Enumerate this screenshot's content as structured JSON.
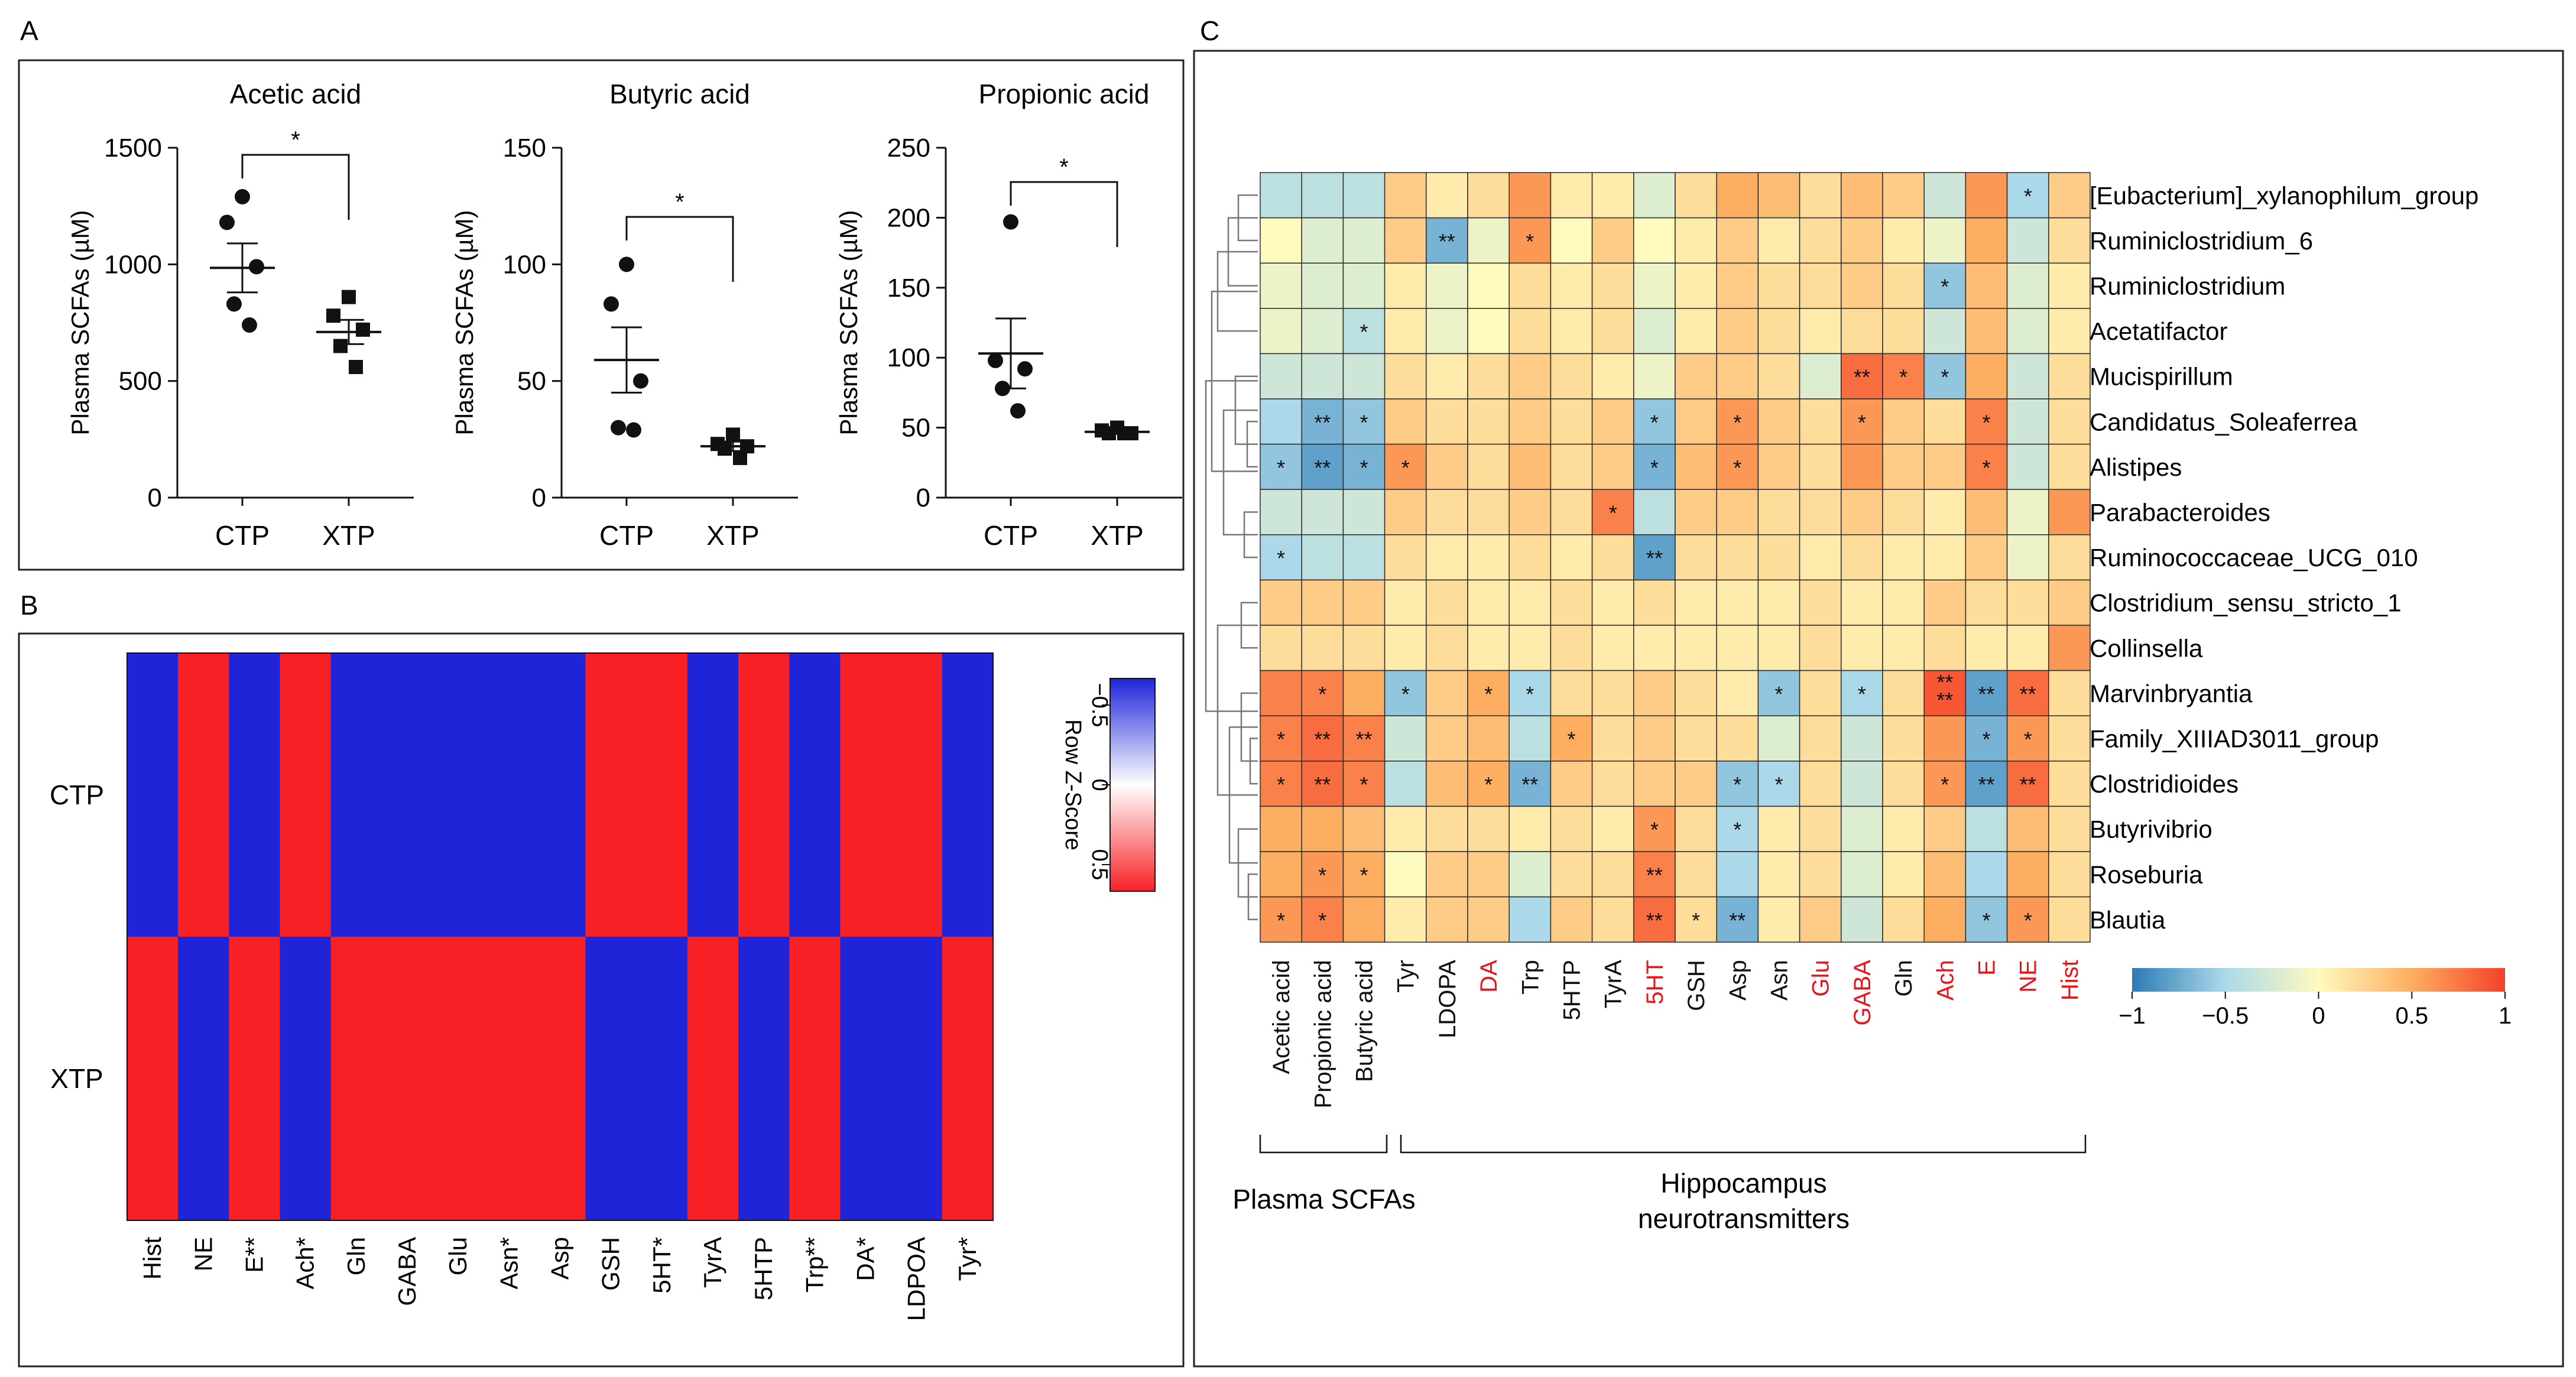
{
  "panel_labels": {
    "a": "A",
    "b": "B",
    "c": "C"
  },
  "chart_data": [
    {
      "type": "scatter",
      "panel": "A",
      "title": "Acetic acid",
      "ylabel": "Plasma SCFAs (µM)",
      "ylim": [
        0,
        1500
      ],
      "yticks": [
        0,
        500,
        1000,
        1500
      ],
      "categories": [
        "CTP",
        "XTP"
      ],
      "points": [
        [
          1290,
          1180,
          990,
          830,
          740
        ],
        [
          860,
          780,
          720,
          650,
          560
        ]
      ],
      "mean": [
        985,
        710
      ],
      "sem": [
        105,
        52
      ],
      "significance": "*"
    },
    {
      "type": "scatter",
      "panel": "A",
      "title": "Butyric acid",
      "ylabel": "Plasma SCFAs (µM)",
      "ylim": [
        0,
        150
      ],
      "yticks": [
        0,
        50,
        100,
        150
      ],
      "categories": [
        "CTP",
        "XTP"
      ],
      "points": [
        [
          100,
          83,
          50,
          30,
          29
        ],
        [
          27,
          23,
          22,
          21,
          17
        ]
      ],
      "mean": [
        59,
        22
      ],
      "sem": [
        14,
        2
      ],
      "significance": "*"
    },
    {
      "type": "scatter",
      "panel": "A",
      "title": "Propionic acid",
      "ylabel": "Plasma SCFAs (µM)",
      "ylim": [
        0,
        250
      ],
      "yticks": [
        0,
        50,
        100,
        150,
        200,
        250
      ],
      "categories": [
        "CTP",
        "XTP"
      ],
      "points": [
        [
          197,
          98,
          92,
          78,
          62
        ],
        [
          50,
          48,
          46,
          46,
          46
        ]
      ],
      "mean": [
        103,
        47
      ],
      "sem": [
        25,
        1.5
      ],
      "significance": "*"
    },
    {
      "type": "heatmap",
      "panel": "B",
      "rows": [
        "CTP",
        "XTP"
      ],
      "columns": [
        "Hist",
        "NE",
        "E**",
        "Ach*",
        "Gln",
        "GABA",
        "Glu",
        "Asn*",
        "Asp",
        "GSH",
        "5HT*",
        "TyrA",
        "5HTP",
        "Trp**",
        "DA*",
        "LDPOA",
        "Tyr*"
      ],
      "values": [
        [
          -0.7,
          0.7,
          -0.7,
          0.7,
          -0.7,
          -0.7,
          -0.7,
          -0.7,
          -0.7,
          0.7,
          0.7,
          -0.7,
          0.7,
          -0.7,
          0.7,
          0.7,
          -0.7
        ],
        [
          0.7,
          -0.7,
          0.7,
          -0.7,
          0.7,
          0.7,
          0.7,
          0.7,
          0.7,
          -0.7,
          -0.7,
          0.7,
          -0.7,
          0.7,
          -0.7,
          -0.7,
          0.7
        ]
      ],
      "legend_title": "Row Z-Score",
      "legend_ticks": [
        "−0.5",
        "0",
        "0.5"
      ],
      "legend_colors": {
        "low": "#1f24d9",
        "mid": "#ffffff",
        "high": "#f72125"
      }
    },
    {
      "type": "heatmap",
      "panel": "C",
      "rows": [
        "[Eubacterium]_xylanophilum_group",
        "Ruminiclostridium_6",
        "Ruminiclostridium",
        "Acetatifactor",
        "Mucispirillum",
        "Candidatus_Soleaferrea",
        "Alistipes",
        "Parabacteroides",
        "Ruminococcaceae_UCG_010",
        "Clostridium_sensu_stricto_1",
        "Collinsella",
        "Marvinbryantia",
        "Family_XIIIAD3011_group",
        "Clostridioides",
        "Butyrivibrio",
        "Roseburia",
        "Blautia"
      ],
      "columns": [
        "Acetic acid",
        "Propionic acid",
        "Butyric acid",
        "Tyr",
        "LDOPA",
        "DA",
        "Trp",
        "5HTP",
        "TyrA",
        "5HT",
        "GSH",
        "Asp",
        "Asn",
        "Glu",
        "GABA",
        "Gln",
        "Ach",
        "E",
        "NE",
        "Hist"
      ],
      "red_columns": [
        "DA",
        "5HT",
        "Glu",
        "GABA",
        "Ach",
        "E",
        "NE",
        "Hist"
      ],
      "values": [
        [
          -0.4,
          -0.4,
          -0.4,
          0.3,
          0.1,
          0.2,
          0.6,
          0.1,
          0.1,
          -0.2,
          0.2,
          0.5,
          0.4,
          0.2,
          0.4,
          0.3,
          -0.3,
          0.6,
          -0.5,
          0.3
        ],
        [
          0.0,
          -0.2,
          -0.2,
          0.3,
          -0.7,
          -0.1,
          0.6,
          0.0,
          0.3,
          0.0,
          0.1,
          0.3,
          0.1,
          0.2,
          0.3,
          0.1,
          -0.1,
          0.5,
          -0.3,
          0.2
        ],
        [
          -0.1,
          -0.2,
          -0.2,
          0.1,
          -0.1,
          0.0,
          0.2,
          0.1,
          0.2,
          -0.1,
          0.1,
          0.3,
          0.2,
          0.2,
          0.3,
          0.2,
          -0.6,
          0.4,
          -0.2,
          0.1
        ],
        [
          -0.1,
          -0.2,
          -0.4,
          0.1,
          -0.1,
          0.0,
          0.2,
          0.1,
          0.2,
          -0.2,
          0.1,
          0.3,
          0.2,
          0.1,
          0.2,
          0.2,
          -0.3,
          0.4,
          -0.2,
          0.1
        ],
        [
          -0.3,
          -0.3,
          -0.3,
          0.2,
          0.1,
          0.2,
          0.3,
          0.2,
          0.1,
          -0.1,
          0.3,
          0.3,
          0.2,
          -0.2,
          0.8,
          0.7,
          -0.6,
          0.5,
          -0.3,
          0.2
        ],
        [
          -0.5,
          -0.7,
          -0.6,
          0.3,
          0.2,
          0.2,
          0.3,
          0.2,
          0.3,
          -0.6,
          0.3,
          0.6,
          0.3,
          0.2,
          0.6,
          0.3,
          0.2,
          0.7,
          -0.3,
          0.2
        ],
        [
          -0.6,
          -0.8,
          -0.7,
          0.6,
          0.3,
          0.2,
          0.4,
          0.2,
          0.3,
          -0.7,
          0.4,
          0.6,
          0.3,
          0.2,
          0.6,
          0.3,
          0.3,
          0.7,
          -0.3,
          0.2
        ],
        [
          -0.3,
          -0.3,
          -0.3,
          0.3,
          0.2,
          0.2,
          0.3,
          0.2,
          0.7,
          -0.4,
          0.3,
          0.3,
          0.2,
          0.2,
          0.3,
          0.2,
          0.1,
          0.4,
          -0.1,
          0.6
        ],
        [
          -0.5,
          -0.4,
          -0.4,
          0.2,
          0.1,
          0.1,
          0.2,
          0.1,
          0.2,
          -0.8,
          0.2,
          0.2,
          0.2,
          0.1,
          0.2,
          0.1,
          0.1,
          0.3,
          -0.1,
          0.2
        ],
        [
          0.3,
          0.3,
          0.3,
          0.1,
          0.2,
          0.1,
          0.1,
          0.2,
          0.1,
          0.2,
          0.1,
          0.1,
          0.1,
          0.2,
          0.1,
          0.1,
          0.3,
          0.2,
          0.2,
          0.3
        ],
        [
          0.2,
          0.2,
          0.2,
          0.1,
          0.2,
          0.1,
          0.1,
          0.2,
          0.1,
          0.1,
          0.1,
          0.1,
          0.1,
          0.2,
          0.1,
          0.1,
          0.2,
          0.1,
          0.1,
          0.6
        ],
        [
          0.7,
          0.7,
          0.5,
          -0.6,
          0.3,
          0.5,
          -0.5,
          0.2,
          0.2,
          0.3,
          0.2,
          0.1,
          -0.6,
          0.2,
          -0.5,
          0.2,
          0.9,
          -0.8,
          0.8,
          0.2
        ],
        [
          0.7,
          0.8,
          0.7,
          -0.3,
          0.3,
          0.4,
          -0.4,
          0.5,
          0.2,
          0.3,
          0.2,
          0.2,
          -0.2,
          0.2,
          -0.3,
          0.2,
          0.6,
          -0.7,
          0.6,
          0.2
        ],
        [
          0.7,
          0.8,
          0.7,
          -0.4,
          0.4,
          0.5,
          -0.7,
          0.3,
          0.2,
          0.3,
          0.3,
          -0.6,
          -0.5,
          0.2,
          -0.3,
          0.2,
          0.6,
          -0.8,
          0.8,
          0.2
        ],
        [
          0.5,
          0.5,
          0.4,
          0.1,
          0.2,
          0.2,
          0.1,
          0.2,
          0.1,
          0.6,
          0.2,
          -0.5,
          0.1,
          0.2,
          -0.2,
          0.1,
          0.3,
          -0.4,
          0.4,
          0.2
        ],
        [
          0.5,
          0.6,
          0.5,
          0.0,
          0.3,
          0.3,
          -0.2,
          0.2,
          0.2,
          0.7,
          0.2,
          -0.5,
          0.1,
          0.2,
          -0.2,
          0.1,
          0.4,
          -0.5,
          0.5,
          0.2
        ],
        [
          0.6,
          0.7,
          0.5,
          0.1,
          0.3,
          0.3,
          -0.5,
          0.3,
          0.2,
          0.8,
          0.2,
          -0.7,
          0.1,
          0.3,
          -0.3,
          0.2,
          0.5,
          -0.6,
          0.6,
          0.2
        ]
      ],
      "significance": [
        {
          "row": 0,
          "col": 18,
          "label": "*"
        },
        {
          "row": 1,
          "col": 4,
          "label": "**"
        },
        {
          "row": 1,
          "col": 6,
          "label": "*"
        },
        {
          "row": 2,
          "col": 16,
          "label": "*"
        },
        {
          "row": 3,
          "col": 2,
          "label": "*"
        },
        {
          "row": 4,
          "col": 14,
          "label": "**"
        },
        {
          "row": 4,
          "col": 15,
          "label": "*"
        },
        {
          "row": 4,
          "col": 16,
          "label": "*"
        },
        {
          "row": 5,
          "col": 1,
          "label": "**"
        },
        {
          "row": 5,
          "col": 2,
          "label": "*"
        },
        {
          "row": 5,
          "col": 9,
          "label": "*"
        },
        {
          "row": 5,
          "col": 11,
          "label": "*"
        },
        {
          "row": 5,
          "col": 14,
          "label": "*"
        },
        {
          "row": 5,
          "col": 17,
          "label": "*"
        },
        {
          "row": 6,
          "col": 0,
          "label": "*"
        },
        {
          "row": 6,
          "col": 1,
          "label": "**"
        },
        {
          "row": 6,
          "col": 2,
          "label": "*"
        },
        {
          "row": 6,
          "col": 3,
          "label": "*"
        },
        {
          "row": 6,
          "col": 9,
          "label": "*"
        },
        {
          "row": 6,
          "col": 11,
          "label": "*"
        },
        {
          "row": 6,
          "col": 17,
          "label": "*"
        },
        {
          "row": 7,
          "col": 8,
          "label": "*"
        },
        {
          "row": 8,
          "col": 0,
          "label": "*"
        },
        {
          "row": 8,
          "col": 9,
          "label": "**"
        },
        {
          "row": 11,
          "col": 1,
          "label": "*"
        },
        {
          "row": 11,
          "col": 3,
          "label": "*"
        },
        {
          "row": 11,
          "col": 5,
          "label": "*"
        },
        {
          "row": 11,
          "col": 6,
          "label": "*"
        },
        {
          "row": 11,
          "col": 12,
          "label": "*"
        },
        {
          "row": 11,
          "col": 14,
          "label": "*"
        },
        {
          "row": 11,
          "col": 16,
          "label": "**\n**"
        },
        {
          "row": 11,
          "col": 17,
          "label": "**"
        },
        {
          "row": 11,
          "col": 18,
          "label": "**"
        },
        {
          "row": 12,
          "col": 0,
          "label": "*"
        },
        {
          "row": 12,
          "col": 1,
          "label": "**"
        },
        {
          "row": 12,
          "col": 2,
          "label": "**"
        },
        {
          "row": 12,
          "col": 7,
          "label": "*"
        },
        {
          "row": 12,
          "col": 17,
          "label": "*"
        },
        {
          "row": 12,
          "col": 18,
          "label": "*"
        },
        {
          "row": 13,
          "col": 0,
          "label": "*"
        },
        {
          "row": 13,
          "col": 1,
          "label": "**"
        },
        {
          "row": 13,
          "col": 2,
          "label": "*"
        },
        {
          "row": 13,
          "col": 5,
          "label": "*"
        },
        {
          "row": 13,
          "col": 6,
          "label": "**"
        },
        {
          "row": 13,
          "col": 11,
          "label": "*"
        },
        {
          "row": 13,
          "col": 12,
          "label": "*"
        },
        {
          "row": 13,
          "col": 16,
          "label": "*"
        },
        {
          "row": 13,
          "col": 17,
          "label": "**"
        },
        {
          "row": 13,
          "col": 18,
          "label": "**"
        },
        {
          "row": 14,
          "col": 9,
          "label": "*"
        },
        {
          "row": 14,
          "col": 11,
          "label": "*"
        },
        {
          "row": 15,
          "col": 1,
          "label": "*"
        },
        {
          "row": 15,
          "col": 2,
          "label": "*"
        },
        {
          "row": 15,
          "col": 9,
          "label": "**"
        },
        {
          "row": 16,
          "col": 0,
          "label": "*"
        },
        {
          "row": 16,
          "col": 1,
          "label": "*"
        },
        {
          "row": 16,
          "col": 9,
          "label": "**"
        },
        {
          "row": 16,
          "col": 10,
          "label": "*"
        },
        {
          "row": 16,
          "col": 11,
          "label": "**"
        },
        {
          "row": 16,
          "col": 17,
          "label": "*"
        },
        {
          "row": 16,
          "col": 18,
          "label": "*"
        }
      ],
      "legend_ticks": [
        "−1",
        "−0.5",
        "0",
        "0.5",
        "1"
      ],
      "legend_range": [
        -1,
        1
      ],
      "group_labels": {
        "plasma": "Plasma SCFAs",
        "hippo_line1": "Hippocampus",
        "hippo_line2": "neurotransmitters"
      }
    }
  ]
}
